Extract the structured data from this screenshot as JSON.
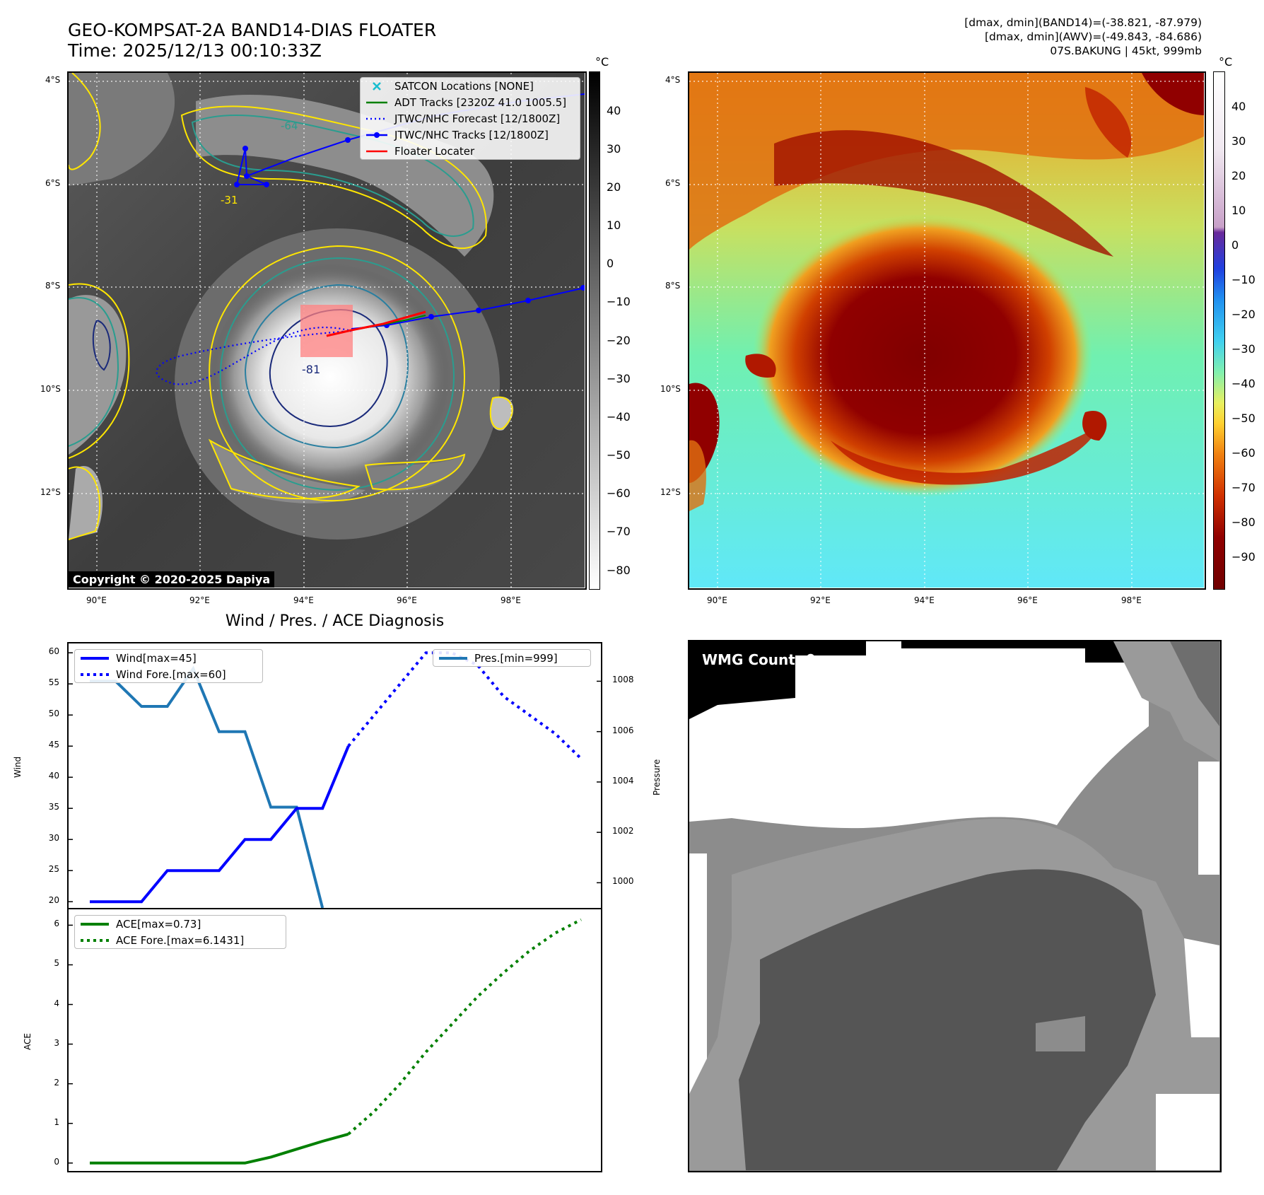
{
  "header": {
    "title_line1": "GEO-KOMPSAT-2A BAND14-DIAS FLOATER",
    "title_line2": "Time: 2025/12/13 00:10:33Z",
    "info_line1": "[dmax, dmin](BAND14)=(-38.821, -87.979)",
    "info_line2": "[dmax, dmin](AWV)=(-49.843, -84.686)",
    "info_line3": "07S.BAKUNG | 45kt, 999mb"
  },
  "map_axes": {
    "lat_ticks": [
      "4°S",
      "6°S",
      "8°S",
      "10°S",
      "12°S"
    ],
    "lon_ticks": [
      "90°E",
      "92°E",
      "94°E",
      "96°E",
      "98°E"
    ]
  },
  "ir_panel": {
    "legend": [
      {
        "label": "SATCON Locations [NONE]",
        "marker": "x",
        "color": "#17becf"
      },
      {
        "label": "ADT Tracks [2320Z 41.0 1005.5]",
        "marker": "line",
        "color": "#008000"
      },
      {
        "label": "JTWC/NHC Forecast [12/1800Z]",
        "marker": "dotted",
        "color": "#0000ff"
      },
      {
        "label": "JTWC/NHC Tracks [12/1800Z]",
        "marker": "line-dot",
        "color": "#0000ff"
      },
      {
        "label": "Floater Locater",
        "marker": "line",
        "color": "#ff0000"
      }
    ],
    "copyright": "Copyright © 2020-2025 Dapiya",
    "contour_labels": [
      "-81",
      "-31",
      "-64"
    ],
    "colorbar_unit": "°C",
    "colorbar_ticks": [
      "40",
      "30",
      "20",
      "10",
      "0",
      "−10",
      "−20",
      "−30",
      "−40",
      "−50",
      "−60",
      "−70",
      "−80"
    ]
  },
  "awv_panel": {
    "colorbar_unit": "°C",
    "colorbar_ticks": [
      "40",
      "30",
      "20",
      "10",
      "0",
      "−10",
      "−20",
      "−30",
      "−40",
      "−50",
      "−60",
      "−70",
      "−80",
      "−90"
    ]
  },
  "wmg_panel": {
    "count_label": "WMG Count: 0"
  },
  "colors": {
    "wind": "#0000ff",
    "pressure": "#1f77b4",
    "ace": "#008000",
    "contour_yellow": "#ffe600",
    "contour_teal": "#2a9d8f",
    "contour_navy": "#1a2a7a"
  },
  "chart_data": [
    {
      "type": "line",
      "title": "Wind / Pres. / ACE Diagnosis",
      "ylabel": "Wind",
      "y2label": "Pressure",
      "ylim": [
        19,
        61.5
      ],
      "y2lim": [
        999,
        1009.5
      ],
      "yticks": [
        "60",
        "55",
        "50",
        "45",
        "40",
        "35",
        "30",
        "25",
        "20"
      ],
      "y2ticks": [
        "1008",
        "1006",
        "1004",
        "1002",
        "1000"
      ],
      "x": [
        0,
        1,
        2,
        3,
        4,
        5,
        6,
        7,
        8,
        9,
        10,
        11,
        12,
        13,
        14,
        15,
        16,
        17,
        18,
        19
      ],
      "series": [
        {
          "name": "Wind[max=45]",
          "values": [
            20,
            20,
            20,
            25,
            25,
            25,
            30,
            30,
            35,
            35,
            45,
            null,
            null,
            null,
            null,
            null,
            null,
            null,
            null,
            null
          ]
        },
        {
          "name": "Wind Fore.[max=60]",
          "values": [
            null,
            null,
            null,
            null,
            null,
            null,
            null,
            null,
            null,
            null,
            45,
            50,
            55,
            60,
            60,
            58,
            53,
            50,
            47,
            43
          ]
        },
        {
          "name": "Pres.[min=999]",
          "values": [
            1008,
            1008,
            1007,
            1007,
            1008.5,
            1006,
            1006,
            1003,
            1003,
            999,
            null,
            null,
            null,
            null,
            null,
            null,
            null,
            null,
            null,
            null
          ],
          "axis": "right"
        }
      ]
    },
    {
      "type": "line",
      "ylabel": "ACE",
      "ylim": [
        -0.2,
        6.4
      ],
      "yticks": [
        "6",
        "5",
        "4",
        "3",
        "2",
        "1",
        "0"
      ],
      "x": [
        0,
        1,
        2,
        3,
        4,
        5,
        6,
        7,
        8,
        9,
        10,
        11,
        12,
        13,
        14,
        15,
        16,
        17,
        18,
        19
      ],
      "series": [
        {
          "name": "ACE[max=0.73]",
          "values": [
            0,
            0,
            0,
            0,
            0,
            0,
            0,
            0.15,
            0.35,
            0.55,
            0.73,
            null,
            null,
            null,
            null,
            null,
            null,
            null,
            null,
            null
          ]
        },
        {
          "name": "ACE Fore.[max=6.1431]",
          "values": [
            null,
            null,
            null,
            null,
            null,
            null,
            null,
            null,
            null,
            null,
            0.73,
            1.3,
            2.0,
            2.8,
            3.5,
            4.2,
            4.8,
            5.35,
            5.8,
            6.14
          ]
        }
      ]
    }
  ]
}
